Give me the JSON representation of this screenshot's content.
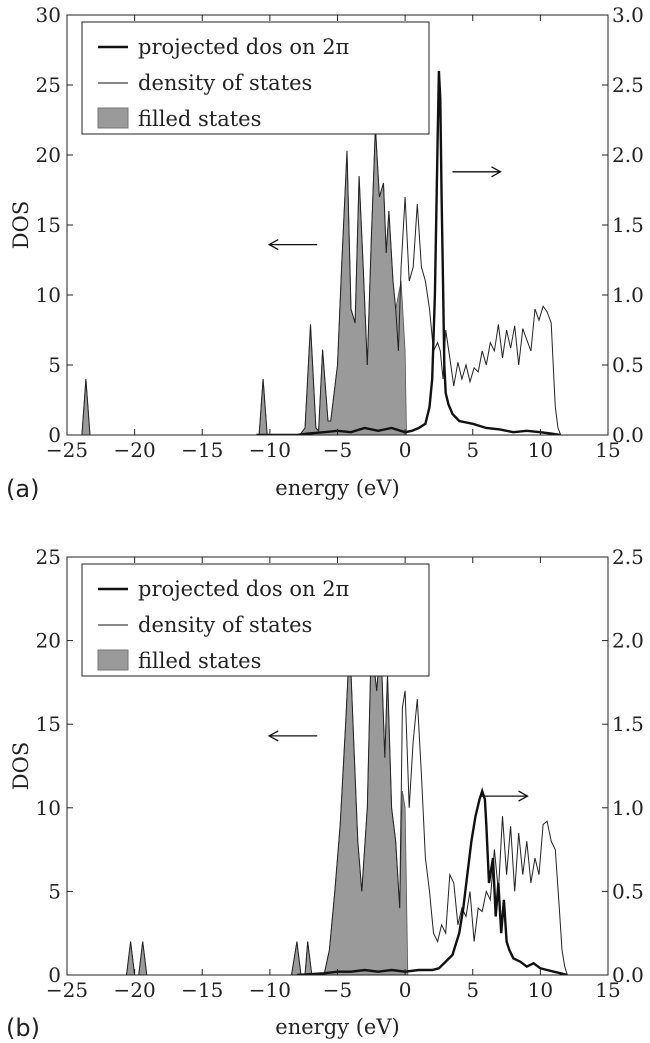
{
  "chart_data": [
    {
      "panel_label": "(a)",
      "type": "line",
      "xlabel": "energy (eV)",
      "ylabel": "DOS",
      "xlim": [
        -25,
        15
      ],
      "ylim": [
        0,
        30
      ],
      "y2lim": [
        0,
        3.0
      ],
      "x_ticks": [
        -25,
        -20,
        -15,
        -10,
        -5,
        0,
        5,
        10,
        15
      ],
      "y_ticks": [
        0,
        5,
        10,
        15,
        20,
        25,
        30
      ],
      "y2_ticks": [
        "0.0",
        "0.5",
        "1.0",
        "1.5",
        "2.0",
        "2.5",
        "3.0"
      ],
      "legend": [
        "projected dos on 2π",
        "density of states",
        "filled states"
      ],
      "legend_position": "top-left",
      "arrows": [
        {
          "direction": "left",
          "axis": "left",
          "x": -6.5,
          "y": 13.6
        },
        {
          "direction": "right",
          "axis": "right",
          "x": 3.5,
          "y": 1.88
        }
      ],
      "series": [
        {
          "name": "density of states",
          "axis": "left",
          "x": [
            -24.4,
            -23.9,
            -23.6,
            -23.3,
            -23.0,
            -22.4,
            -11.2,
            -10.8,
            -10.5,
            -10.2,
            -9.8,
            -7.8,
            -7.4,
            -7.0,
            -6.6,
            -6.4,
            -6.1,
            -5.7,
            -5.5,
            -5.0,
            -4.7,
            -4.3,
            -4.0,
            -3.7,
            -3.4,
            -3.1,
            -2.8,
            -2.5,
            -2.2,
            -1.9,
            -1.6,
            -1.4,
            -1.2,
            -0.9,
            -0.7,
            -0.5,
            -0.3,
            0.0,
            0.3,
            0.6,
            0.9,
            1.2,
            1.5,
            1.8,
            2.1,
            2.4,
            2.6,
            2.8,
            3.0,
            3.3,
            3.6,
            3.9,
            4.2,
            4.5,
            4.8,
            5.1,
            5.4,
            5.7,
            6.0,
            6.3,
            6.6,
            6.9,
            7.2,
            7.5,
            7.8,
            8.1,
            8.4,
            8.7,
            9.0,
            9.3,
            9.6,
            9.9,
            10.2,
            10.5,
            10.8,
            11.0,
            11.1,
            11.3,
            11.5
          ],
          "values": [
            0,
            0,
            4.0,
            0,
            0,
            0,
            0,
            0,
            4.0,
            0,
            0,
            0,
            0.5,
            7.9,
            0.5,
            0.3,
            6.1,
            1.0,
            1.0,
            5.0,
            12.0,
            20.3,
            9.0,
            8.0,
            18.5,
            12.0,
            5.0,
            14.0,
            22.0,
            17.0,
            18.0,
            13.0,
            16.0,
            11.0,
            9.0,
            6.0,
            12.0,
            17.0,
            11.0,
            12.0,
            16.5,
            12.0,
            11.0,
            9.0,
            6.0,
            6.6,
            6.0,
            4.0,
            7.5,
            5.5,
            3.5,
            5.2,
            4.0,
            5.0,
            3.8,
            4.8,
            4.5,
            6.0,
            5.0,
            6.6,
            6.0,
            7.9,
            5.5,
            7.5,
            6.2,
            7.8,
            5.0,
            7.6,
            6.8,
            6.0,
            9.0,
            8.2,
            9.2,
            8.8,
            8.0,
            4.0,
            2.0,
            0.5,
            0
          ]
        },
        {
          "name": "filled states",
          "axis": "left",
          "x": [
            -24.4,
            -23.9,
            -23.6,
            -23.3,
            -23.0,
            -22.4,
            -11.2,
            -10.8,
            -10.5,
            -10.2,
            -9.8,
            -7.8,
            -7.4,
            -7.0,
            -6.6,
            -6.4,
            -6.1,
            -5.7,
            -5.5,
            -5.0,
            -4.7,
            -4.3,
            -4.0,
            -3.7,
            -3.4,
            -3.1,
            -2.8,
            -2.5,
            -2.2,
            -1.9,
            -1.6,
            -1.4,
            -1.2,
            -0.9,
            -0.7,
            -0.5,
            -0.3,
            0.0,
            0.1
          ],
          "values": [
            0,
            0,
            4.0,
            0,
            0,
            0,
            0,
            0,
            4.0,
            0,
            0,
            0,
            0.5,
            7.9,
            0.5,
            0.3,
            6.1,
            1.0,
            1.0,
            5.0,
            12.0,
            20.3,
            9.0,
            8.0,
            18.5,
            12.0,
            5.0,
            14.0,
            22.0,
            17.0,
            18.0,
            13.0,
            16.0,
            11.0,
            9.0,
            10.0,
            11.0,
            6.0,
            0
          ]
        },
        {
          "name": "projected dos on 2π",
          "axis": "right",
          "x": [
            -11.0,
            -8.0,
            -7.2,
            -6.0,
            -5.0,
            -4.0,
            -3.0,
            -2.0,
            -1.0,
            0.0,
            0.5,
            1.0,
            1.5,
            1.8,
            2.0,
            2.2,
            2.4,
            2.5,
            2.6,
            2.7,
            2.8,
            2.9,
            3.0,
            3.2,
            3.5,
            4.0,
            5.0,
            6.0,
            7.0,
            8.0,
            9.0,
            10.0,
            10.8,
            11.5
          ],
          "values": [
            0,
            0,
            0.01,
            0.02,
            0.03,
            0.02,
            0.05,
            0.03,
            0.05,
            0.02,
            0.03,
            0.05,
            0.08,
            0.2,
            0.4,
            1.0,
            2.1,
            2.6,
            2.4,
            1.7,
            1.1,
            0.5,
            0.3,
            0.22,
            0.15,
            0.1,
            0.08,
            0.05,
            0.04,
            0.02,
            0.03,
            0.02,
            0.01,
            0
          ]
        }
      ]
    },
    {
      "panel_label": "(b)",
      "type": "line",
      "xlabel": "energy (eV)",
      "ylabel": "DOS",
      "xlim": [
        -25,
        15
      ],
      "ylim": [
        0,
        25
      ],
      "y2lim": [
        0,
        2.5
      ],
      "x_ticks": [
        -25,
        -20,
        -15,
        -10,
        -5,
        0,
        5,
        10,
        15
      ],
      "y_ticks": [
        0,
        5,
        10,
        15,
        20,
        25
      ],
      "y2_ticks": [
        "0.0",
        "0.5",
        "1.0",
        "1.5",
        "2.0",
        "2.5"
      ],
      "legend": [
        "projected dos on 2π",
        "density of states",
        "filled states"
      ],
      "legend_position": "top-left",
      "arrows": [
        {
          "direction": "left",
          "axis": "left",
          "x": -6.5,
          "y": 14.3
        },
        {
          "direction": "right",
          "axis": "right",
          "x": 5.5,
          "y": 1.07
        }
      ],
      "series": [
        {
          "name": "density of states",
          "axis": "left",
          "x": [
            -20.6,
            -20.3,
            -20.0,
            -19.7,
            -19.4,
            -19.1,
            -18.8,
            -8.4,
            -8.0,
            -7.7,
            -7.4,
            -7.2,
            -6.9,
            -6.5,
            -6.0,
            -5.6,
            -5.2,
            -4.8,
            -4.4,
            -4.1,
            -3.8,
            -3.5,
            -3.2,
            -2.8,
            -2.5,
            -2.1,
            -1.8,
            -1.5,
            -1.3,
            -1.0,
            -0.7,
            -0.4,
            -0.2,
            0.0,
            0.3,
            0.6,
            0.9,
            1.2,
            1.5,
            1.8,
            2.1,
            2.4,
            2.7,
            3.0,
            3.3,
            3.6,
            3.9,
            4.2,
            4.5,
            4.8,
            5.1,
            5.4,
            5.7,
            6.0,
            6.3,
            6.6,
            6.9,
            7.2,
            7.5,
            7.8,
            8.1,
            8.4,
            8.7,
            9.0,
            9.3,
            9.6,
            9.9,
            10.2,
            10.5,
            10.8,
            11.1,
            11.4,
            11.6,
            11.8,
            12.0
          ],
          "values": [
            0,
            2.0,
            0,
            0,
            2.0,
            0,
            0,
            0,
            2.0,
            0,
            0,
            2.0,
            0,
            0,
            0,
            1.5,
            5.0,
            9.0,
            15.0,
            20.0,
            14.0,
            8.0,
            5.0,
            10.0,
            20.0,
            17.0,
            20.0,
            13.0,
            18.0,
            10.0,
            8.0,
            4.0,
            16.0,
            17.0,
            10.0,
            14.0,
            16.5,
            12.0,
            7.0,
            5.0,
            2.5,
            2.0,
            3.0,
            2.5,
            6.0,
            5.5,
            3.0,
            4.0,
            3.5,
            5.0,
            2.0,
            4.0,
            3.8,
            5.0,
            4.5,
            7.5,
            5.0,
            9.5,
            6.0,
            8.9,
            5.0,
            8.5,
            6.0,
            8.0,
            5.5,
            7.0,
            6.0,
            9.0,
            9.2,
            8.0,
            7.5,
            4.0,
            1.5,
            0.5,
            0
          ]
        },
        {
          "name": "filled states",
          "axis": "left",
          "x": [
            -20.6,
            -20.3,
            -20.0,
            -19.7,
            -19.4,
            -19.1,
            -18.8,
            -8.4,
            -8.0,
            -7.7,
            -7.4,
            -7.2,
            -6.9,
            -6.5,
            -6.0,
            -5.6,
            -5.2,
            -4.8,
            -4.4,
            -4.1,
            -3.8,
            -3.5,
            -3.2,
            -2.8,
            -2.5,
            -2.1,
            -1.8,
            -1.5,
            -1.3,
            -1.0,
            -0.7,
            -0.4,
            -0.2,
            0.0,
            0.2
          ],
          "values": [
            0,
            2.0,
            0,
            0,
            2.0,
            0,
            0,
            0,
            2.0,
            0,
            0,
            2.0,
            0,
            0,
            0,
            1.5,
            5.0,
            9.0,
            15.0,
            20.0,
            14.0,
            8.0,
            5.0,
            10.0,
            20.0,
            17.0,
            20.0,
            13.0,
            18.0,
            10.0,
            8.0,
            4.0,
            11.0,
            10.0,
            0
          ]
        },
        {
          "name": "projected dos on 2π",
          "axis": "right",
          "x": [
            -8.0,
            -6.0,
            -5.0,
            -4.0,
            -3.0,
            -2.0,
            -1.0,
            0.0,
            1.0,
            2.0,
            2.5,
            3.0,
            3.5,
            4.0,
            4.3,
            4.6,
            4.9,
            5.2,
            5.5,
            5.7,
            5.9,
            6.0,
            6.2,
            6.5,
            6.7,
            6.9,
            7.1,
            7.3,
            7.5,
            7.7,
            8.0,
            8.5,
            9.0,
            9.5,
            10.0,
            10.5,
            11.0,
            11.5,
            12.0
          ],
          "values": [
            0,
            0.01,
            0.02,
            0.02,
            0.03,
            0.02,
            0.03,
            0.02,
            0.03,
            0.03,
            0.04,
            0.08,
            0.12,
            0.25,
            0.4,
            0.6,
            0.8,
            0.95,
            1.05,
            1.1,
            1.05,
            0.9,
            0.55,
            0.7,
            0.35,
            0.55,
            0.25,
            0.45,
            0.2,
            0.15,
            0.1,
            0.08,
            0.05,
            0.07,
            0.04,
            0.03,
            0.02,
            0.01,
            0
          ]
        }
      ]
    }
  ]
}
